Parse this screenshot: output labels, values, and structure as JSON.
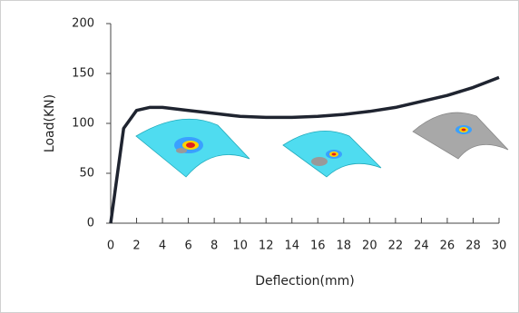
{
  "chart_data": {
    "type": "line",
    "x_label": "Deflection(mm)",
    "y_label": "Load(KN)",
    "xlim": [
      0,
      30
    ],
    "ylim": [
      0,
      200
    ],
    "xticks": [
      0,
      2,
      4,
      6,
      8,
      10,
      12,
      14,
      16,
      18,
      20,
      22,
      24,
      26,
      28,
      30
    ],
    "yticks": [
      0,
      50,
      100,
      150,
      200
    ],
    "series": [
      {
        "color": "#1f2430",
        "x": [
          0,
          1,
          2,
          3,
          4,
          6,
          8,
          10,
          12,
          14,
          16,
          18,
          20,
          22,
          24,
          26,
          28,
          30
        ],
        "values": [
          0,
          95,
          113,
          116,
          116,
          113,
          110,
          107,
          106,
          106,
          107,
          109,
          112,
          116,
          122,
          128,
          136,
          146
        ]
      }
    ]
  }
}
